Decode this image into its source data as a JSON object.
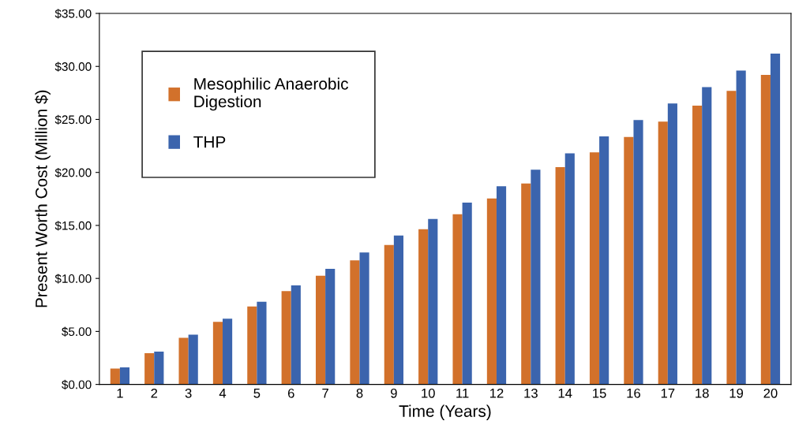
{
  "chart_data": {
    "type": "bar",
    "xlabel": "Time (Years)",
    "ylabel": "Present Worth Cost (Million $)",
    "categories": [
      "1",
      "2",
      "3",
      "4",
      "5",
      "6",
      "7",
      "8",
      "9",
      "10",
      "11",
      "12",
      "13",
      "14",
      "15",
      "16",
      "17",
      "18",
      "19",
      "20"
    ],
    "series": [
      {
        "name": "Mesophilic Anaerobic Digestion",
        "color": "#d2712b",
        "values": [
          1.5,
          2.95,
          4.4,
          5.9,
          7.35,
          8.8,
          10.25,
          11.7,
          13.15,
          14.65,
          16.05,
          17.55,
          18.95,
          20.5,
          21.9,
          23.35,
          24.8,
          26.3,
          27.7,
          29.2
        ]
      },
      {
        "name": "THP",
        "color": "#3b64ad",
        "values": [
          1.6,
          3.1,
          4.7,
          6.2,
          7.8,
          9.35,
          10.9,
          12.45,
          14.05,
          15.6,
          17.15,
          18.7,
          20.25,
          21.8,
          23.4,
          24.95,
          26.5,
          28.05,
          29.6,
          31.2
        ]
      }
    ],
    "ylim": [
      0,
      35
    ],
    "yticks": [
      {
        "value": 0,
        "label": "$0.00"
      },
      {
        "value": 5,
        "label": "$5.00"
      },
      {
        "value": 10,
        "label": "$10.00"
      },
      {
        "value": 15,
        "label": "$15.00"
      },
      {
        "value": 20,
        "label": "$20.00"
      },
      {
        "value": 25,
        "label": "$25.00"
      },
      {
        "value": 30,
        "label": "$30.00"
      },
      {
        "value": 35,
        "label": "$35.00"
      }
    ],
    "grid": false,
    "legend": "top left"
  }
}
